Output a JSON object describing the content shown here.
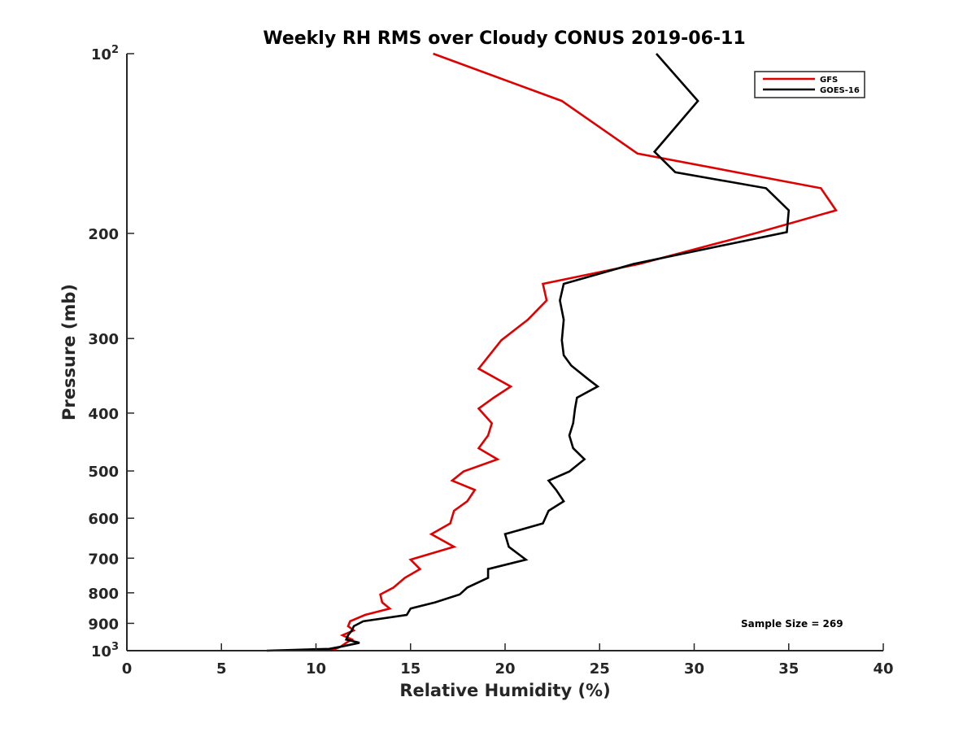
{
  "chart_data": {
    "type": "line",
    "title": "Weekly RH RMS over Cloudy CONUS 2019-06-11",
    "xlabel": "Relative Humidity (%)",
    "ylabel": "Pressure (mb)",
    "xlim": [
      0,
      40
    ],
    "ylim": [
      1000,
      100
    ],
    "yscale": "log",
    "x_ticks": [
      "0",
      "5",
      "10",
      "15",
      "20",
      "25",
      "30",
      "35",
      "40"
    ],
    "y_ticks": [
      {
        "value": 100,
        "base": "10",
        "exp": "2"
      },
      {
        "value": 200,
        "label": "200"
      },
      {
        "value": 300,
        "label": "300"
      },
      {
        "value": 400,
        "label": "400"
      },
      {
        "value": 500,
        "label": "500"
      },
      {
        "value": 600,
        "label": "600"
      },
      {
        "value": 700,
        "label": "700"
      },
      {
        "value": 800,
        "label": "800"
      },
      {
        "value": 900,
        "label": "900"
      },
      {
        "value": 1000,
        "base": "10",
        "exp": "3"
      }
    ],
    "legend_position": "top-right",
    "grid": false,
    "annotation": "Sample Size = 269",
    "series": [
      {
        "name": "GFS",
        "color": "#e00000",
        "x": [
          16.2,
          23.0,
          27.0,
          36.7,
          37.5,
          33.2,
          27.1,
          22.0,
          22.2,
          21.2,
          19.8,
          18.6,
          20.3,
          19.4,
          18.6,
          19.3,
          19.1,
          18.6,
          19.6,
          17.8,
          17.2,
          18.4,
          18.0,
          17.3,
          17.1,
          16.1,
          17.3,
          15.0,
          15.5,
          14.7,
          14.1,
          13.4,
          13.5,
          13.9,
          12.6,
          11.8,
          11.7,
          12.0,
          11.4,
          11.9,
          11.6,
          11.3,
          10.8
        ],
        "y": [
          100,
          120,
          147,
          168,
          183,
          200,
          225,
          243,
          259,
          279,
          302,
          337,
          361,
          377,
          393,
          416,
          436,
          458,
          478,
          501,
          519,
          538,
          562,
          583,
          612,
          638,
          670,
          704,
          730,
          755,
          784,
          805,
          830,
          850,
          871,
          893,
          910,
          925,
          942,
          958,
          970,
          985,
          1000
        ]
      },
      {
        "name": "GOES-16",
        "color": "#000000",
        "x": [
          28.0,
          30.2,
          27.9,
          29.0,
          33.8,
          35.0,
          34.9,
          26.8,
          23.1,
          22.9,
          23.1,
          23.0,
          23.1,
          23.5,
          24.4,
          24.9,
          23.8,
          23.7,
          23.6,
          23.4,
          23.6,
          24.2,
          23.4,
          22.3,
          22.7,
          23.1,
          22.3,
          22.0,
          20.0,
          20.2,
          21.1,
          19.1,
          19.1,
          18.0,
          17.6,
          16.3,
          15.0,
          14.8,
          12.5,
          12.0,
          11.9,
          11.7,
          11.6,
          12.3,
          11.3,
          10.7,
          7.4
        ],
        "y": [
          100,
          120,
          146,
          158,
          168,
          183,
          199,
          225,
          243,
          259,
          279,
          302,
          320,
          333,
          351,
          361,
          377,
          393,
          416,
          436,
          458,
          478,
          501,
          519,
          538,
          562,
          583,
          612,
          638,
          670,
          704,
          730,
          755,
          784,
          805,
          830,
          850,
          871,
          893,
          910,
          925,
          942,
          958,
          970,
          985,
          993,
          1000
        ]
      }
    ]
  }
}
